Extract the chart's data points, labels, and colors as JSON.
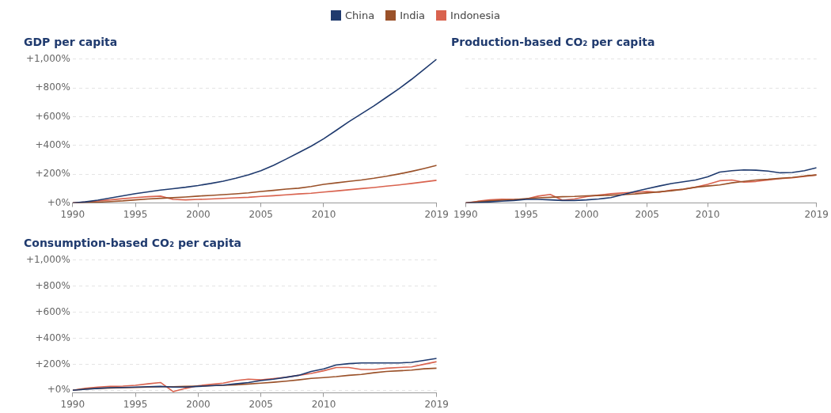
{
  "chart_data": [
    {
      "type": "line",
      "title": "GDP per capita",
      "legend": "top",
      "grid": "y",
      "x": [
        1990,
        1991,
        1992,
        1993,
        1994,
        1995,
        1996,
        1997,
        1998,
        1999,
        2000,
        2001,
        2002,
        2003,
        2004,
        2005,
        2006,
        2007,
        2008,
        2009,
        2010,
        2011,
        2012,
        2013,
        2014,
        2015,
        2016,
        2017,
        2018,
        2019
      ],
      "xlim": [
        1990,
        2019
      ],
      "xticks": [
        1990,
        1995,
        2000,
        2005,
        2010,
        2019
      ],
      "ylim": [
        0,
        1000
      ],
      "yticks": [
        {
          "value": 0,
          "label": "+0%"
        },
        {
          "value": 200,
          "label": "+200%"
        },
        {
          "value": 400,
          "label": "+400%"
        },
        {
          "value": 600,
          "label": "+600%"
        },
        {
          "value": 800,
          "label": "+800%"
        },
        {
          "value": 1000,
          "label": "+1,000%"
        }
      ],
      "series": [
        {
          "name": "China",
          "color": "#1f3a6e",
          "values": [
            0,
            8,
            20,
            35,
            50,
            65,
            78,
            90,
            100,
            110,
            122,
            136,
            152,
            172,
            196,
            225,
            262,
            305,
            350,
            395,
            447,
            505,
            565,
            620,
            675,
            735,
            795,
            860,
            930,
            1000
          ]
        },
        {
          "name": "India",
          "color": "#9a5129",
          "values": [
            0,
            3,
            6,
            10,
            15,
            22,
            28,
            33,
            37,
            42,
            48,
            53,
            58,
            64,
            71,
            80,
            88,
            97,
            103,
            115,
            130,
            140,
            150,
            160,
            172,
            186,
            202,
            220,
            240,
            262
          ]
        },
        {
          "name": "Indonesia",
          "color": "#d9634f",
          "values": [
            0,
            7,
            14,
            22,
            30,
            38,
            44,
            48,
            25,
            22,
            25,
            28,
            32,
            36,
            40,
            46,
            51,
            57,
            63,
            68,
            76,
            84,
            92,
            100,
            108,
            117,
            126,
            136,
            147,
            158
          ]
        }
      ]
    },
    {
      "type": "line",
      "title": "Production-based CO₂ per capita",
      "grid": "y",
      "tick_labels": "x",
      "x": [
        1990,
        1991,
        1992,
        1993,
        1994,
        1995,
        1996,
        1997,
        1998,
        1999,
        2000,
        2001,
        2002,
        2003,
        2004,
        2005,
        2006,
        2007,
        2008,
        2009,
        2010,
        2011,
        2012,
        2013,
        2014,
        2015,
        2016,
        2017,
        2018,
        2019
      ],
      "xlim": [
        1990,
        2019
      ],
      "xticks": [
        1990,
        1995,
        2000,
        2005,
        2010,
        2019
      ],
      "ylim": [
        0,
        1000
      ],
      "yticks": [
        0,
        200,
        400,
        600,
        800,
        1000
      ],
      "series": [
        {
          "color": "#1f3a6e",
          "values": [
            0,
            3,
            8,
            13,
            18,
            25,
            25,
            22,
            18,
            18,
            22,
            28,
            38,
            58,
            80,
            100,
            118,
            135,
            148,
            160,
            182,
            215,
            225,
            230,
            228,
            222,
            210,
            212,
            225,
            245
          ]
        },
        {
          "color": "#9a5129",
          "values": [
            0,
            8,
            15,
            20,
            24,
            30,
            36,
            40,
            44,
            46,
            50,
            52,
            55,
            58,
            63,
            70,
            78,
            85,
            96,
            110,
            118,
            126,
            140,
            150,
            160,
            165,
            172,
            178,
            188,
            195
          ]
        },
        {
          "color": "#d9634f",
          "values": [
            0,
            12,
            22,
            26,
            25,
            28,
            48,
            60,
            20,
            28,
            45,
            55,
            65,
            70,
            75,
            80,
            75,
            90,
            95,
            110,
            130,
            155,
            160,
            145,
            150,
            160,
            170,
            175,
            185,
            195
          ]
        }
      ]
    },
    {
      "type": "line",
      "title": "Consumption-based CO₂ per capita",
      "grid": "y",
      "x": [
        1990,
        1991,
        1992,
        1993,
        1994,
        1995,
        1996,
        1997,
        1998,
        1999,
        2000,
        2001,
        2002,
        2003,
        2004,
        2005,
        2006,
        2007,
        2008,
        2009,
        2010,
        2011,
        2012,
        2013,
        2014,
        2015,
        2016,
        2017,
        2018,
        2019
      ],
      "xlim": [
        1990,
        2019
      ],
      "xticks": [
        1990,
        1995,
        2000,
        2005,
        2010,
        2019
      ],
      "ylim": [
        -20,
        1000
      ],
      "yticks": [
        {
          "value": 0,
          "label": "+0%"
        },
        {
          "value": 200,
          "label": "+200%"
        },
        {
          "value": 400,
          "label": "+400%"
        },
        {
          "value": 600,
          "label": "+600%"
        },
        {
          "value": 800,
          "label": "+800%"
        },
        {
          "value": 1000,
          "label": "+1,000%"
        }
      ],
      "series": [
        {
          "color": "#1f3a6e",
          "values": [
            0,
            8,
            15,
            20,
            22,
            25,
            28,
            30,
            25,
            25,
            30,
            35,
            40,
            50,
            60,
            75,
            85,
            100,
            115,
            145,
            165,
            195,
            205,
            210,
            210,
            210,
            210,
            215,
            230,
            245
          ]
        },
        {
          "color": "#9a5129",
          "values": [
            0,
            10,
            15,
            18,
            20,
            22,
            25,
            28,
            28,
            30,
            32,
            35,
            38,
            42,
            48,
            55,
            62,
            70,
            80,
            92,
            98,
            105,
            115,
            122,
            135,
            145,
            150,
            155,
            165,
            170
          ]
        },
        {
          "color": "#d9634f",
          "values": [
            0,
            15,
            25,
            30,
            32,
            38,
            50,
            60,
            -10,
            15,
            35,
            45,
            55,
            75,
            85,
            80,
            90,
            100,
            115,
            130,
            150,
            175,
            175,
            160,
            160,
            170,
            175,
            180,
            200,
            220
          ]
        }
      ]
    }
  ]
}
